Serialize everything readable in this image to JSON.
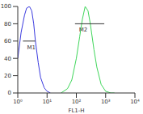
{
  "chart_data": {
    "type": "line",
    "x_label": "FL1-H",
    "log": "x",
    "x": [
      1,
      1.3,
      1.7,
      2,
      2.5,
      3,
      3.5,
      4,
      5,
      6,
      8,
      10,
      13,
      30,
      50,
      70,
      100,
      130,
      160,
      200,
      250,
      300,
      400,
      500,
      700,
      1000,
      1500,
      2000
    ],
    "series": [
      {
        "color": "#3a3adf",
        "values": [
          40,
          70,
          90,
          98,
          100,
          95,
          80,
          60,
          35,
          18,
          6,
          2,
          0,
          null,
          null,
          null,
          null,
          null,
          null,
          null,
          null,
          null,
          null,
          null,
          null,
          null,
          null,
          null
        ]
      },
      {
        "color": "#3fd65a",
        "values": [
          null,
          null,
          null,
          null,
          null,
          null,
          null,
          null,
          null,
          null,
          null,
          null,
          null,
          0,
          5,
          15,
          40,
          65,
          85,
          100,
          95,
          80,
          50,
          30,
          10,
          2,
          0,
          0
        ]
      }
    ],
    "xlim": [
      1,
      10000
    ],
    "xticks": [
      {
        "value": 1,
        "label": "10⁰"
      },
      {
        "value": 10,
        "label": "10¹"
      },
      {
        "value": 100,
        "label": "10²"
      },
      {
        "value": 1000,
        "label": "10³"
      },
      {
        "value": 10000,
        "label": "10⁴"
      }
    ],
    "ylim": [
      0,
      100
    ],
    "yticks": [
      0,
      20,
      40,
      60,
      80,
      100
    ],
    "annotations": [
      {
        "text": "M1",
        "x": [
          1.5,
          4
        ],
        "y": 60
      },
      {
        "text": "M2",
        "x": [
          90,
          900
        ],
        "y": 80
      }
    ]
  }
}
